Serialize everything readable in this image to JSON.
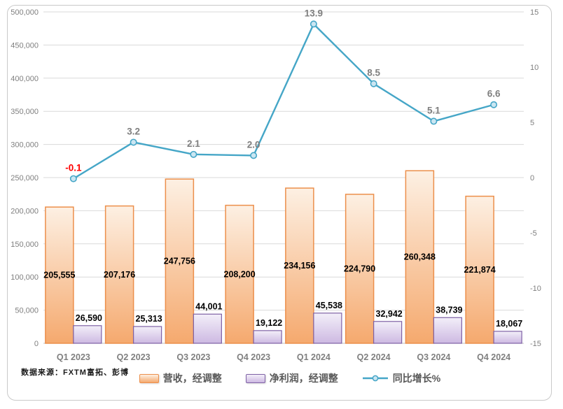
{
  "source_note": "数据来源：FXTM富拓、彭博",
  "legend": {
    "items": [
      {
        "label": "营收，经调整",
        "swatch": "orange-bar"
      },
      {
        "label": "净利润，经调整",
        "swatch": "purple-bar"
      },
      {
        "label": "同比增长%",
        "swatch": "teal-line"
      }
    ]
  },
  "colors": {
    "revenue_fill_top": "#FDF0E3",
    "revenue_fill_bottom": "#F5A96E",
    "revenue_border": "#EC8F4B",
    "profit_fill_top": "#F3EFF9",
    "profit_fill_bottom": "#CDB9E2",
    "profit_border": "#7E61A5",
    "line": "#45A6C7",
    "marker_fill": "#CBE6F2",
    "grid": "#D9D9D9",
    "axis_line": "#BFBFBF",
    "axis_text": "#7F7F7F",
    "bar_label": "#000000",
    "negative_label": "#FF0000"
  },
  "chart_data": {
    "type": "combo(bar+line)",
    "categories": [
      "Q1 2023",
      "Q2 2023",
      "Q3 2023",
      "Q4 2023",
      "Q1 2024",
      "Q2 2024",
      "Q3 2024",
      "Q4 2024"
    ],
    "series": [
      {
        "name": "营收，经调整",
        "chart_type": "bar",
        "axis": "left",
        "values": [
          205555,
          207176,
          247756,
          208200,
          234156,
          224790,
          260348,
          221874
        ],
        "labels": [
          "205,555",
          "207,176",
          "247,756",
          "208,200",
          "234,156",
          "224,790",
          "260,348",
          "221,874"
        ]
      },
      {
        "name": "净利润，经调整",
        "chart_type": "bar",
        "axis": "left",
        "values": [
          26590,
          25313,
          44001,
          19122,
          45538,
          32942,
          38739,
          18067
        ],
        "labels": [
          "26,590",
          "25,313",
          "44,001",
          "19,122",
          "45,538",
          "32,942",
          "38,739",
          "18,067"
        ]
      },
      {
        "name": "同比增长%",
        "chart_type": "line",
        "axis": "right",
        "values": [
          -0.1,
          3.2,
          2.1,
          2.0,
          13.9,
          8.5,
          5.1,
          6.6
        ],
        "labels": [
          "-0.1",
          "3.2",
          "2.1",
          "2.0",
          "13.9",
          "8.5",
          "5.1",
          "6.6"
        ],
        "label_color_overrides": {
          "0": "#FF0000"
        }
      }
    ],
    "left_axis": {
      "min": 0,
      "max": 500000,
      "step": 50000,
      "ticks": [
        "500,000",
        "450,000",
        "400,000",
        "350,000",
        "300,000",
        "250,000",
        "200,000",
        "150,000",
        "100,000",
        "50,000",
        "0"
      ]
    },
    "right_axis": {
      "min": -15,
      "max": 15,
      "step": 5,
      "ticks": [
        "15",
        "10",
        "5",
        "0",
        "-5",
        "-10",
        "-15"
      ]
    },
    "grid": true,
    "legend_position": "bottom"
  }
}
